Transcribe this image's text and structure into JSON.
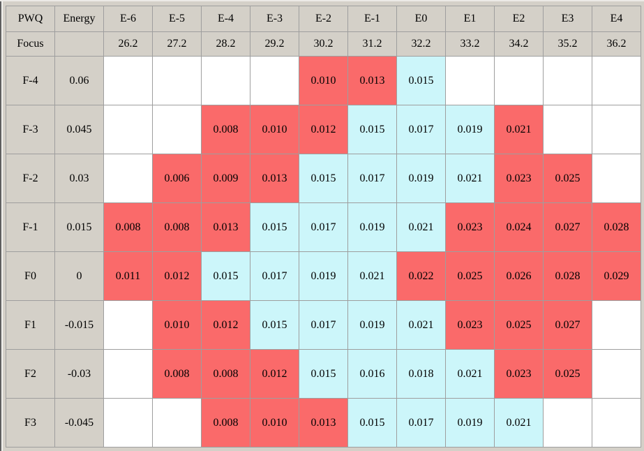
{
  "colors": {
    "red": "#fa6a6a",
    "cyan": "#ccf6fa",
    "header_bg": "#d4d0c8",
    "grid_line": "#9e9e9e",
    "empty_cell": "#ffffff",
    "text": "#000000",
    "window_bg": "#d4d0c8"
  },
  "table": {
    "corner_row1": "PWQ",
    "corner_row2": "Focus",
    "energy_header": "Energy",
    "energy_focus_blank": "",
    "columns": [
      {
        "label": "E-6",
        "focus": "26.2"
      },
      {
        "label": "E-5",
        "focus": "27.2"
      },
      {
        "label": "E-4",
        "focus": "28.2"
      },
      {
        "label": "E-3",
        "focus": "29.2"
      },
      {
        "label": "E-2",
        "focus": "30.2"
      },
      {
        "label": "E-1",
        "focus": "31.2"
      },
      {
        "label": "E0",
        "focus": "32.2"
      },
      {
        "label": "E1",
        "focus": "33.2"
      },
      {
        "label": "E2",
        "focus": "34.2"
      },
      {
        "label": "E3",
        "focus": "35.2"
      },
      {
        "label": "E4",
        "focus": "36.2"
      }
    ],
    "rows": [
      {
        "label": "F-4",
        "energy": "0.06",
        "cells": [
          null,
          null,
          null,
          null,
          {
            "value": "0.010",
            "color": "red"
          },
          {
            "value": "0.013",
            "color": "red"
          },
          {
            "value": "0.015",
            "color": "cyan"
          },
          null,
          null,
          null,
          null
        ]
      },
      {
        "label": "F-3",
        "energy": "0.045",
        "cells": [
          null,
          null,
          {
            "value": "0.008",
            "color": "red"
          },
          {
            "value": "0.010",
            "color": "red"
          },
          {
            "value": "0.012",
            "color": "red"
          },
          {
            "value": "0.015",
            "color": "cyan"
          },
          {
            "value": "0.017",
            "color": "cyan"
          },
          {
            "value": "0.019",
            "color": "cyan"
          },
          {
            "value": "0.021",
            "color": "red"
          },
          null,
          null
        ]
      },
      {
        "label": "F-2",
        "energy": "0.03",
        "cells": [
          null,
          {
            "value": "0.006",
            "color": "red"
          },
          {
            "value": "0.009",
            "color": "red"
          },
          {
            "value": "0.013",
            "color": "red"
          },
          {
            "value": "0.015",
            "color": "cyan"
          },
          {
            "value": "0.017",
            "color": "cyan"
          },
          {
            "value": "0.019",
            "color": "cyan"
          },
          {
            "value": "0.021",
            "color": "cyan"
          },
          {
            "value": "0.023",
            "color": "red"
          },
          {
            "value": "0.025",
            "color": "red"
          },
          null
        ]
      },
      {
        "label": "F-1",
        "energy": "0.015",
        "cells": [
          {
            "value": "0.008",
            "color": "red"
          },
          {
            "value": "0.008",
            "color": "red"
          },
          {
            "value": "0.013",
            "color": "red"
          },
          {
            "value": "0.015",
            "color": "cyan"
          },
          {
            "value": "0.017",
            "color": "cyan"
          },
          {
            "value": "0.019",
            "color": "cyan"
          },
          {
            "value": "0.021",
            "color": "cyan"
          },
          {
            "value": "0.023",
            "color": "red"
          },
          {
            "value": "0.024",
            "color": "red"
          },
          {
            "value": "0.027",
            "color": "red"
          },
          {
            "value": "0.028",
            "color": "red"
          }
        ]
      },
      {
        "label": "F0",
        "energy": "0",
        "cells": [
          {
            "value": "0.011",
            "color": "red"
          },
          {
            "value": "0.012",
            "color": "red"
          },
          {
            "value": "0.015",
            "color": "cyan"
          },
          {
            "value": "0.017",
            "color": "cyan"
          },
          {
            "value": "0.019",
            "color": "cyan"
          },
          {
            "value": "0.021",
            "color": "cyan"
          },
          {
            "value": "0.022",
            "color": "red"
          },
          {
            "value": "0.025",
            "color": "red"
          },
          {
            "value": "0.026",
            "color": "red"
          },
          {
            "value": "0.028",
            "color": "red"
          },
          {
            "value": "0.029",
            "color": "red"
          }
        ]
      },
      {
        "label": "F1",
        "energy": "-0.015",
        "cells": [
          null,
          {
            "value": "0.010",
            "color": "red"
          },
          {
            "value": "0.012",
            "color": "red"
          },
          {
            "value": "0.015",
            "color": "cyan"
          },
          {
            "value": "0.017",
            "color": "cyan"
          },
          {
            "value": "0.019",
            "color": "cyan"
          },
          {
            "value": "0.021",
            "color": "cyan"
          },
          {
            "value": "0.023",
            "color": "red"
          },
          {
            "value": "0.025",
            "color": "red"
          },
          {
            "value": "0.027",
            "color": "red"
          },
          null
        ]
      },
      {
        "label": "F2",
        "energy": "-0.03",
        "cells": [
          null,
          {
            "value": "0.008",
            "color": "red"
          },
          {
            "value": "0.008",
            "color": "red"
          },
          {
            "value": "0.012",
            "color": "red"
          },
          {
            "value": "0.015",
            "color": "cyan"
          },
          {
            "value": "0.016",
            "color": "cyan"
          },
          {
            "value": "0.018",
            "color": "cyan"
          },
          {
            "value": "0.021",
            "color": "cyan"
          },
          {
            "value": "0.023",
            "color": "red"
          },
          {
            "value": "0.025",
            "color": "red"
          },
          null
        ]
      },
      {
        "label": "F3",
        "energy": "-0.045",
        "cells": [
          null,
          null,
          {
            "value": "0.008",
            "color": "red"
          },
          {
            "value": "0.010",
            "color": "red"
          },
          {
            "value": "0.013",
            "color": "red"
          },
          {
            "value": "0.015",
            "color": "cyan"
          },
          {
            "value": "0.017",
            "color": "cyan"
          },
          {
            "value": "0.019",
            "color": "cyan"
          },
          {
            "value": "0.021",
            "color": "cyan"
          },
          null,
          null
        ]
      }
    ]
  }
}
